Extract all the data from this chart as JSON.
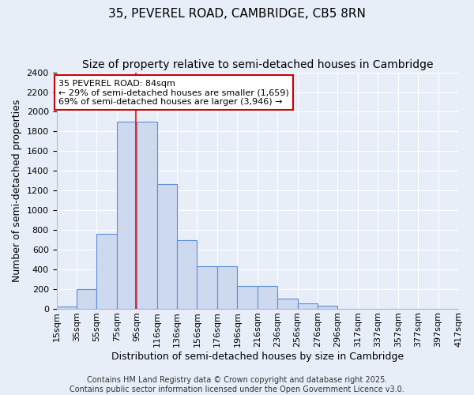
{
  "title": "35, PEVEREL ROAD, CAMBRIDGE, CB5 8RN",
  "subtitle": "Size of property relative to semi-detached houses in Cambridge",
  "xlabel": "Distribution of semi-detached houses by size in Cambridge",
  "ylabel": "Number of semi-detached properties",
  "bin_labels": [
    "15sqm",
    "35sqm",
    "55sqm",
    "75sqm",
    "95sqm",
    "116sqm",
    "136sqm",
    "156sqm",
    "176sqm",
    "196sqm",
    "216sqm",
    "236sqm",
    "256sqm",
    "276sqm",
    "296sqm",
    "317sqm",
    "337sqm",
    "357sqm",
    "377sqm",
    "397sqm",
    "417sqm"
  ],
  "bar_values": [
    25,
    200,
    760,
    1900,
    1900,
    1270,
    700,
    430,
    430,
    230,
    230,
    105,
    60,
    30,
    5,
    5,
    5,
    5,
    5,
    5
  ],
  "bar_color": "#cdd9ef",
  "bar_edge_color": "#5b8fd4",
  "background_color": "#e8eef8",
  "grid_color": "#ffffff",
  "ylim": [
    0,
    2400
  ],
  "yticks": [
    0,
    200,
    400,
    600,
    800,
    1000,
    1200,
    1400,
    1600,
    1800,
    2000,
    2200,
    2400
  ],
  "red_line_x": 3.45,
  "annotation_text": "35 PEVEREL ROAD: 84sqm\n← 29% of semi-detached houses are smaller (1,659)\n69% of semi-detached houses are larger (3,946) →",
  "annotation_box_color": "#ffffff",
  "annotation_border_color": "#cc0000",
  "footer_text": "Contains HM Land Registry data © Crown copyright and database right 2025.\nContains public sector information licensed under the Open Government Licence v3.0.",
  "title_fontsize": 11,
  "subtitle_fontsize": 10,
  "xlabel_fontsize": 9,
  "ylabel_fontsize": 9,
  "tick_fontsize": 8,
  "annotation_fontsize": 8,
  "footer_fontsize": 7
}
